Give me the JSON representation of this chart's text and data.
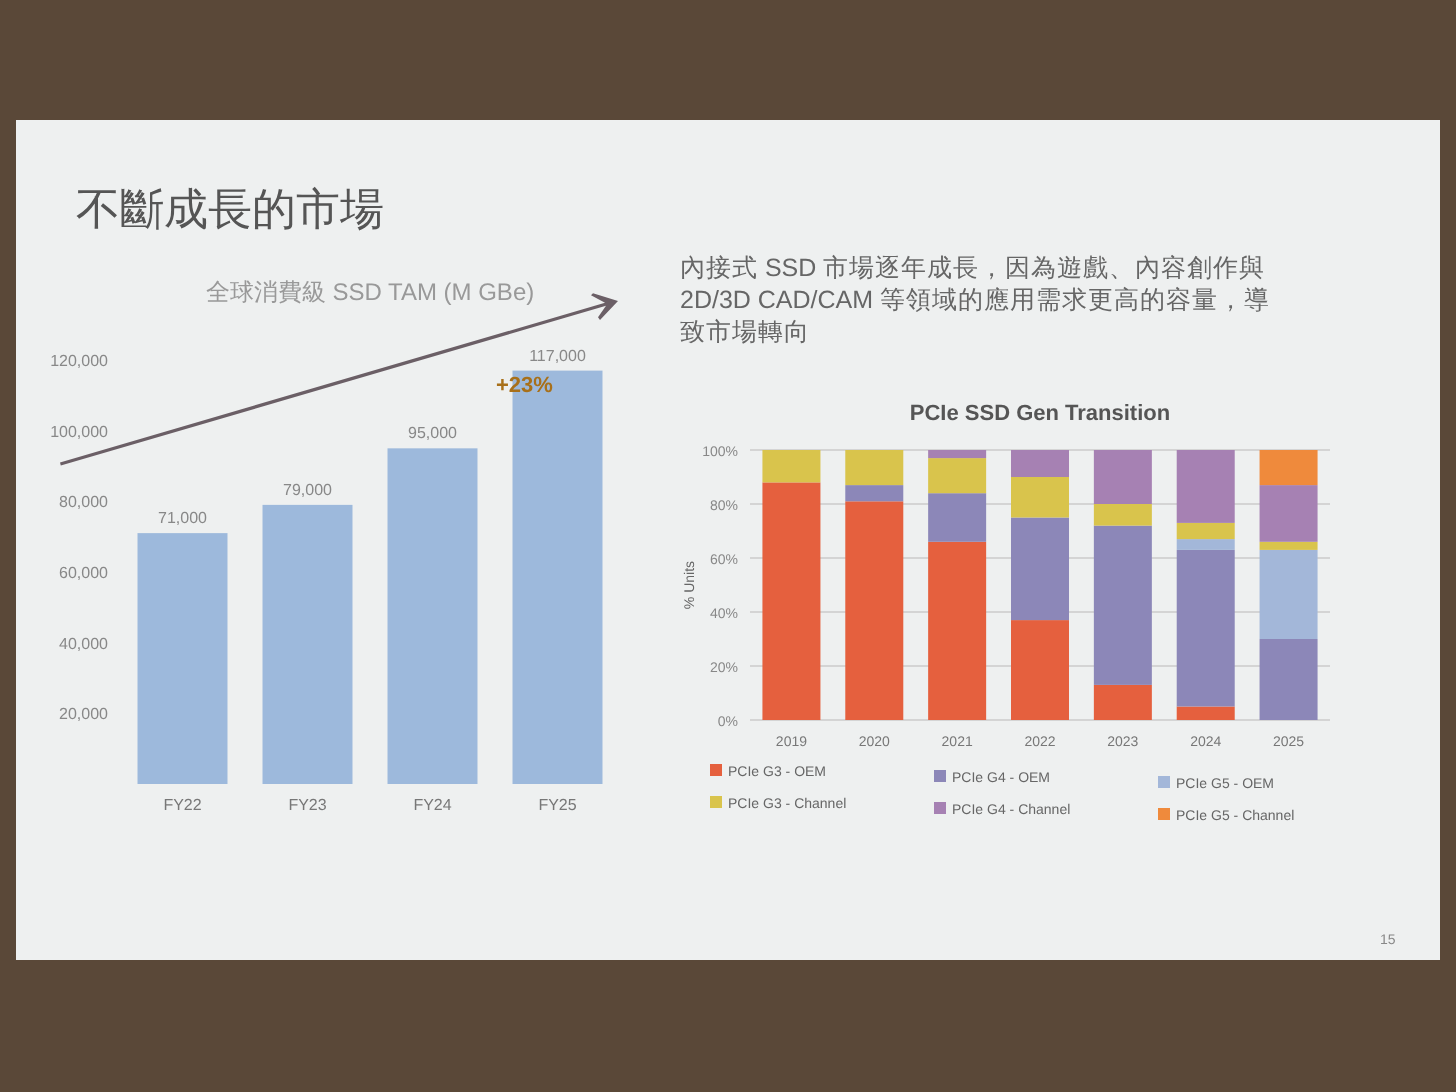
{
  "chart_data": [
    {
      "type": "bar",
      "title": "全球消費級 SSD TAM (M GBe)",
      "categories": [
        "FY22",
        "FY23",
        "FY24",
        "FY25"
      ],
      "values": [
        71000,
        79000,
        95000,
        117000
      ],
      "color": "#9db9dc",
      "ylim": [
        0,
        120000
      ],
      "yticks": [
        {
          "value": 20000,
          "label": "20,000"
        },
        {
          "value": 40000,
          "label": "40,000"
        },
        {
          "value": 60000,
          "label": "60,000"
        },
        {
          "value": 80000,
          "label": "80,000"
        },
        {
          "value": 100000,
          "label": "100,000"
        },
        {
          "value": 120000,
          "label": "120,000"
        }
      ],
      "value_labels": [
        "71,000",
        "79,000",
        "95,000",
        "117,000"
      ],
      "grid": false,
      "annotations": [
        "不斷成長的市場",
        "+23%"
      ]
    },
    {
      "type": "bar",
      "stacked": true,
      "title": "PCIe SSD Gen Transition",
      "ylabel": "% Units",
      "categories": [
        "2019",
        "2020",
        "2021",
        "2022",
        "2023",
        "2024",
        "2025"
      ],
      "series": [
        {
          "name": "PCIe G3 - OEM",
          "color": "#e5603e",
          "values": [
            88,
            81,
            66,
            37,
            13,
            5,
            0
          ]
        },
        {
          "name": "PCIe G4 - OEM",
          "color": "#8c87b8",
          "values": [
            0,
            6,
            18,
            38,
            59,
            58,
            30
          ]
        },
        {
          "name": "PCIe G5 - OEM",
          "color": "#a3b7d9",
          "values": [
            0,
            0,
            0,
            0,
            0,
            4,
            33
          ]
        },
        {
          "name": "PCIe G3 - Channel",
          "color": "#d9c44c",
          "values": [
            12,
            13,
            13,
            15,
            8,
            6,
            3
          ]
        },
        {
          "name": "PCIe G4 - Channel",
          "color": "#a681b3",
          "values": [
            0,
            0,
            3,
            10,
            20,
            27,
            21
          ]
        },
        {
          "name": "PCIe G5 - Channel",
          "color": "#ef8a3c",
          "values": [
            0,
            0,
            0,
            0,
            0,
            0,
            13
          ]
        }
      ],
      "ylim": [
        0,
        100
      ],
      "yticks": [
        {
          "value": 0,
          "label": "0%"
        },
        {
          "value": 20,
          "label": "20%"
        },
        {
          "value": 40,
          "label": "40%"
        },
        {
          "value": 60,
          "label": "60%"
        },
        {
          "value": 80,
          "label": "80%"
        },
        {
          "value": 100,
          "label": "100%"
        }
      ],
      "grid": "y",
      "legend": "bottom",
      "annotations": [
        "內接式 SSD 市場逐年成長，因為遊戲、內容創作與",
        "2D/3D CAD/CAM 等領域的應用需求更高的容量，導",
        "致市場轉向",
        "15"
      ]
    }
  ]
}
